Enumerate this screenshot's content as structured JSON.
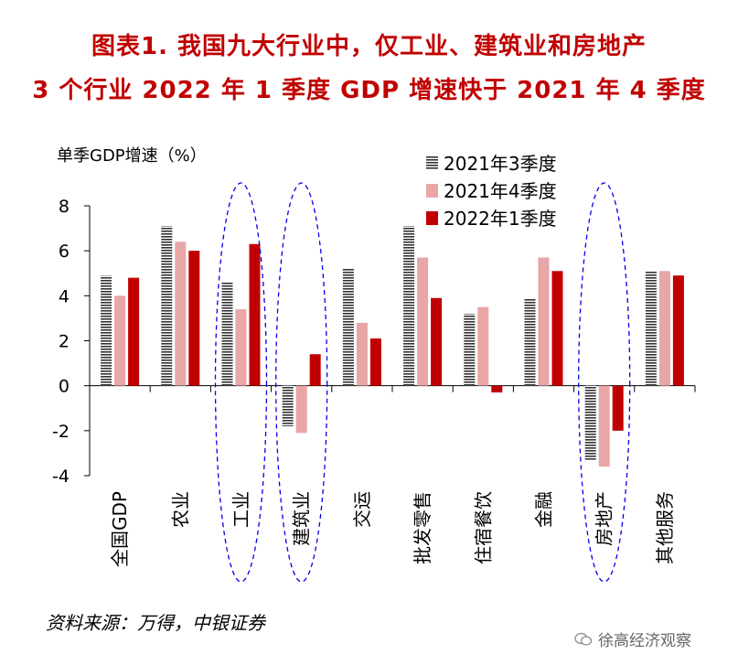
{
  "title_line1": "图表1.  我国九大行业中，仅工业、建筑业和房地产",
  "title_line2": "3 个行业 2022 年 1 季度 GDP 增速快于 2021 年 4 季度",
  "source": "资料来源：万得，中银证券",
  "watermark": "徐高经济观察",
  "colors": {
    "q3": "#333333",
    "q4": "#e8a6a6",
    "q1": "#c00000",
    "title": "#c00000",
    "ellipse": "#0000ee"
  },
  "chart_data": {
    "type": "bar",
    "ylabel": "单季GDP增速（%）",
    "ylim": [
      -4,
      8
    ],
    "yticks": [
      "-4",
      "-2",
      "0",
      "2",
      "4",
      "6",
      "8"
    ],
    "categories": [
      "全国GDP",
      "农业",
      "工业",
      "建筑业",
      "交运",
      "批发零售",
      "住宿餐饮",
      "金融",
      "房地产",
      "其他服务"
    ],
    "series": [
      {
        "name": "2021年3季度",
        "values": [
          4.9,
          7.1,
          4.6,
          -1.8,
          5.2,
          7.1,
          3.2,
          3.9,
          -3.3,
          5.1
        ]
      },
      {
        "name": "2021年4季度",
        "values": [
          4.0,
          6.4,
          3.4,
          -2.1,
          2.8,
          5.7,
          3.5,
          5.7,
          -3.6,
          5.1
        ]
      },
      {
        "name": "2022年1季度",
        "values": [
          4.8,
          6.0,
          6.3,
          1.4,
          2.1,
          3.9,
          -0.3,
          5.1,
          -2.0,
          4.9
        ]
      }
    ],
    "highlighted": [
      "工业",
      "建筑业",
      "房地产"
    ],
    "legend_position": "top-right"
  }
}
